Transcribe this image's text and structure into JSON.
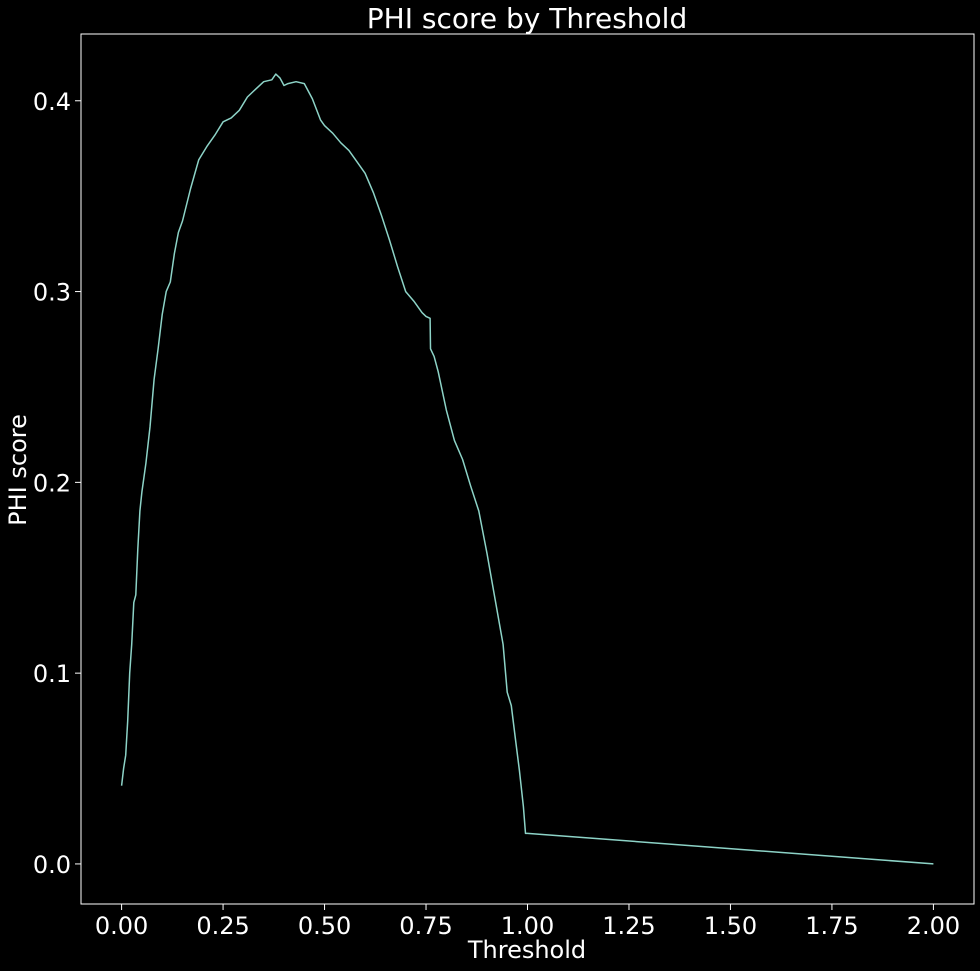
{
  "chart_data": {
    "type": "line",
    "title": "PHI score by Threshold",
    "xlabel": "Threshold",
    "ylabel": "PHI score",
    "xlim": [
      -0.1,
      2.1
    ],
    "ylim": [
      -0.021,
      0.435
    ],
    "x_ticks": [
      0.0,
      0.25,
      0.5,
      0.75,
      1.0,
      1.25,
      1.5,
      1.75,
      2.0
    ],
    "x_tick_labels": [
      "0.00",
      "0.25",
      "0.50",
      "0.75",
      "1.00",
      "1.25",
      "1.50",
      "1.75",
      "2.00"
    ],
    "y_ticks": [
      0.0,
      0.1,
      0.2,
      0.3,
      0.4
    ],
    "y_tick_labels": [
      "0.0",
      "0.1",
      "0.2",
      "0.3",
      "0.4"
    ],
    "grid": false,
    "colors": {
      "background": "#000000",
      "line": "#8dd3c7",
      "text": "#ffffff",
      "axes": "#ffffff"
    },
    "series": [
      {
        "x": [
          0.0,
          0.005,
          0.01,
          0.015,
          0.02,
          0.025,
          0.03,
          0.035,
          0.04,
          0.045,
          0.05,
          0.06,
          0.07,
          0.08,
          0.09,
          0.1,
          0.11,
          0.12,
          0.13,
          0.14,
          0.15,
          0.17,
          0.19,
          0.21,
          0.23,
          0.25,
          0.27,
          0.29,
          0.31,
          0.33,
          0.35,
          0.37,
          0.38,
          0.39,
          0.4,
          0.41,
          0.43,
          0.45,
          0.47,
          0.49,
          0.5,
          0.52,
          0.54,
          0.56,
          0.58,
          0.6,
          0.62,
          0.64,
          0.66,
          0.68,
          0.7,
          0.72,
          0.74,
          0.75,
          0.76,
          0.761,
          0.77,
          0.78,
          0.8,
          0.82,
          0.84,
          0.86,
          0.88,
          0.9,
          0.92,
          0.94,
          0.95,
          0.96,
          0.97,
          0.98,
          0.99,
          0.995,
          1.0,
          2.0
        ],
        "y": [
          0.041,
          0.05,
          0.057,
          0.075,
          0.1,
          0.115,
          0.137,
          0.141,
          0.165,
          0.185,
          0.195,
          0.21,
          0.229,
          0.254,
          0.27,
          0.288,
          0.3,
          0.305,
          0.32,
          0.331,
          0.337,
          0.354,
          0.369,
          0.376,
          0.382,
          0.389,
          0.391,
          0.395,
          0.402,
          0.406,
          0.41,
          0.411,
          0.414,
          0.412,
          0.408,
          0.409,
          0.41,
          0.409,
          0.401,
          0.39,
          0.387,
          0.383,
          0.378,
          0.374,
          0.368,
          0.362,
          0.352,
          0.34,
          0.327,
          0.313,
          0.3,
          0.295,
          0.289,
          0.287,
          0.286,
          0.27,
          0.266,
          0.258,
          0.238,
          0.222,
          0.212,
          0.198,
          0.185,
          0.163,
          0.139,
          0.115,
          0.09,
          0.083,
          0.066,
          0.049,
          0.03,
          0.016,
          0.016,
          0.0
        ]
      }
    ]
  }
}
